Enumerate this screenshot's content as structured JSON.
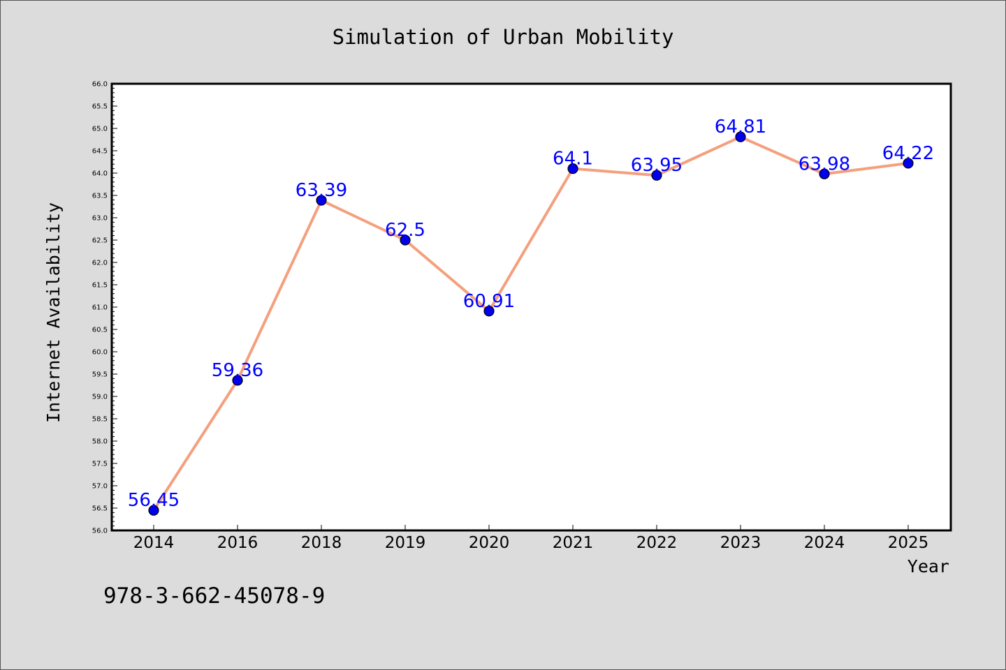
{
  "chart_data": {
    "type": "line",
    "title": "Simulation of Urban Mobility",
    "xlabel": "Year",
    "ylabel": "Internet Availability",
    "categories": [
      "2014",
      "2016",
      "2018",
      "2019",
      "2020",
      "2021",
      "2022",
      "2023",
      "2024",
      "2025"
    ],
    "series": [
      {
        "values": [
          56.45,
          59.36,
          63.39,
          62.5,
          60.91,
          64.1,
          63.95,
          64.81,
          63.98,
          64.22
        ],
        "labels": [
          "56.45",
          "59.36",
          "63.39",
          "62.5",
          "60.91",
          "64.1",
          "63.95",
          "64.81",
          "63.98",
          "64.22"
        ]
      }
    ],
    "ylim": [
      56.0,
      66.0
    ],
    "y_major_step": 0.5,
    "y_tick_labels": [
      "56.0",
      "56.5",
      "57.0",
      "57.5",
      "58.0",
      "58.5",
      "59.0",
      "59.5",
      "60.0",
      "60.5",
      "61.0",
      "61.5",
      "62.0",
      "62.5",
      "63.0",
      "63.5",
      "64.0",
      "64.5",
      "65.0",
      "65.5",
      "66.0"
    ],
    "grid": false,
    "legend": "none",
    "colors": {
      "line": "#f4a07e",
      "marker": "#0000ee",
      "data_label": "#0000ff",
      "background": "#dcdcdc",
      "plot_background": "#ffffff"
    }
  },
  "footnote": "978-3-662-45078-9"
}
